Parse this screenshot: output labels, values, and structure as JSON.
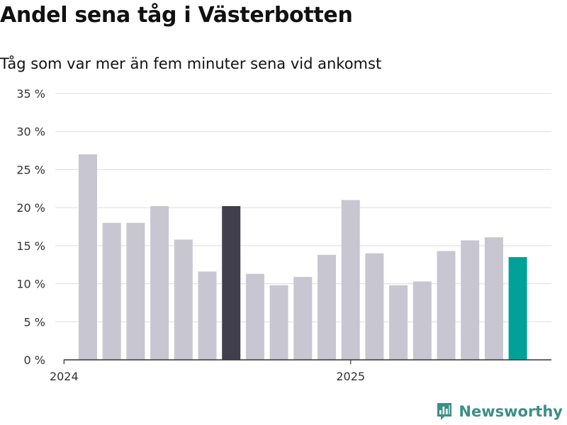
{
  "title": "Andel sena tåg i Västerbotten",
  "subtitle": "Tåg som var mer än fem minuter sena vid ankomst",
  "brand": {
    "name": "Newsworthy",
    "icon": "newsworthy-logo-icon"
  },
  "colors": {
    "bar_default": "#c8c6d1",
    "bar_highlight_dark": "#413f4d",
    "bar_highlight_teal": "#00a298",
    "grid": "#dddddd",
    "axis": "#333333",
    "brand": "#3a8f88"
  },
  "chart_data": {
    "type": "bar",
    "title": "Andel sena tåg i Västerbotten",
    "subtitle": "Tåg som var mer än fem minuter sena vid ankomst",
    "y_unit": "%",
    "ylim": [
      0,
      35
    ],
    "yticks": [
      0,
      5,
      10,
      15,
      20,
      25,
      30,
      35
    ],
    "ytick_labels": [
      "0 %",
      "5 %",
      "10 %",
      "15 %",
      "20 %",
      "25 %",
      "30 %",
      "35 %"
    ],
    "x_tick_labels": [
      {
        "label": "2024",
        "at_bar_index": 0
      },
      {
        "label": "2025",
        "at_bar_index": 12
      }
    ],
    "values": [
      27.0,
      18.0,
      18.0,
      20.2,
      15.8,
      11.6,
      20.2,
      11.3,
      9.8,
      10.9,
      13.8,
      21.0,
      14.0,
      9.8,
      10.3,
      14.3,
      15.7,
      16.1,
      13.5
    ],
    "highlights": [
      {
        "index": 6,
        "color": "#413f4d"
      },
      {
        "index": 18,
        "color": "#00a298"
      }
    ],
    "grid": true,
    "legend": "none"
  }
}
